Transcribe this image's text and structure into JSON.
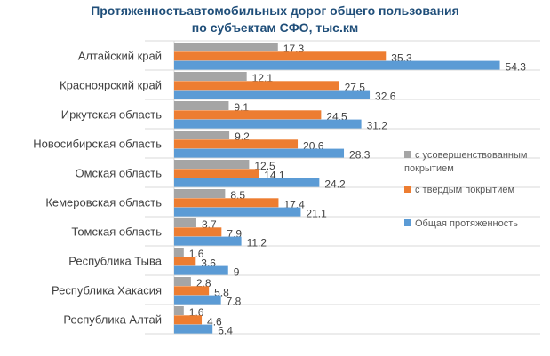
{
  "chart_data": {
    "type": "bar",
    "orientation": "horizontal",
    "title_lines": [
      "Протяженностьавтомобильных дорог общего пользования",
      "по субъектам СФО, тыс.км"
    ],
    "categories": [
      "Алтайский край",
      "Красноярский край",
      "Иркутская область",
      "Новосибирская область",
      "Омская область",
      "Кемеровская область",
      "Томская область",
      "Республика Тыва",
      "Республика Хакасия",
      "Республика Алтай"
    ],
    "series": [
      {
        "name": "с усовершенствованным покрытием",
        "color": "#a5a5a5",
        "values": [
          17.3,
          12.1,
          9.1,
          9.2,
          12.5,
          8.5,
          3.7,
          1.6,
          2.8,
          1.6
        ]
      },
      {
        "name": "с твердым покрытием",
        "color": "#ed7d31",
        "values": [
          35.3,
          27.5,
          24.5,
          20.6,
          14.1,
          17.4,
          7.9,
          3.6,
          5.8,
          4.6
        ]
      },
      {
        "name": "Общая протяженность",
        "color": "#5b9bd5",
        "values": [
          54.3,
          32.6,
          31.2,
          28.3,
          24.2,
          21.1,
          11.2,
          9,
          7.8,
          6.4
        ]
      }
    ],
    "xlim": [
      0,
      60
    ],
    "grid": true,
    "legend_position": "right"
  }
}
